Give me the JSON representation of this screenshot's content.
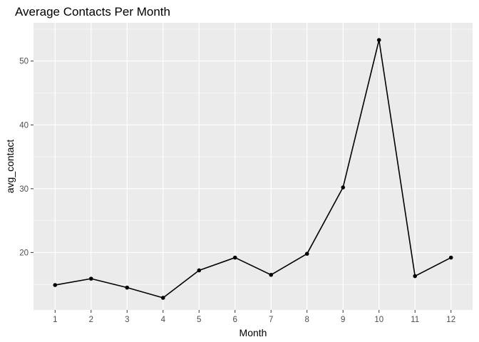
{
  "chart_data": {
    "type": "line",
    "title": "Average Contacts Per Month",
    "xlabel": "Month",
    "ylabel": "avg_contact",
    "x": [
      1,
      2,
      3,
      4,
      5,
      6,
      7,
      8,
      9,
      10,
      11,
      12
    ],
    "x_tick_labels": [
      "1",
      "2",
      "3",
      "4",
      "5",
      "6",
      "7",
      "8",
      "9",
      "10",
      "11",
      "12"
    ],
    "y_ticks": [
      20,
      30,
      40,
      50
    ],
    "y_tick_labels": [
      "20",
      "30",
      "40",
      "50"
    ],
    "xlim": [
      0.4,
      12.6
    ],
    "ylim": [
      11.0,
      56.0
    ],
    "series": [
      {
        "values": [
          14.9,
          15.9,
          14.5,
          12.9,
          17.2,
          19.2,
          16.5,
          19.8,
          30.2,
          53.3,
          16.3,
          19.2
        ]
      }
    ],
    "grid": true,
    "background": "#ebebeb",
    "line_color": "#000000"
  }
}
